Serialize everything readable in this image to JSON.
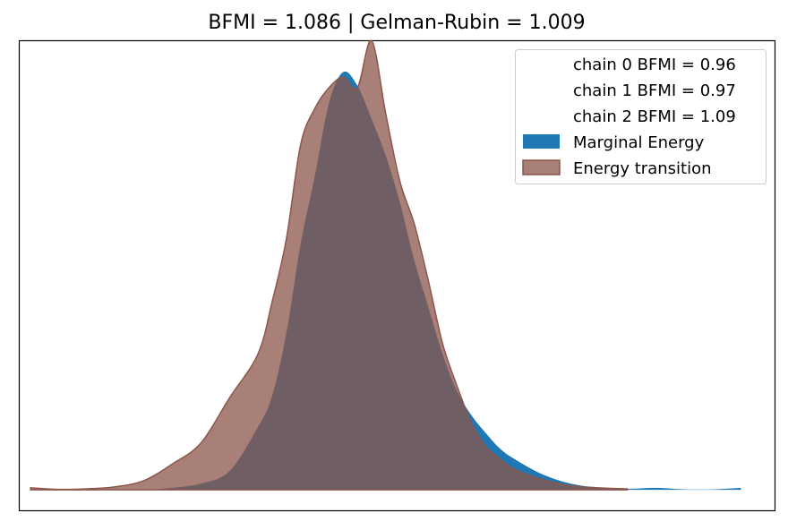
{
  "chart_data": {
    "type": "area",
    "title": "BFMI = 1.086 | Gelman-Rubin = 1.009",
    "xlabel": "",
    "ylabel": "",
    "axes_ticks": false,
    "grid": false,
    "legend_position": "top-right",
    "xlim": [
      -6.2,
      7.1
    ],
    "ylim": [
      -0.02,
      0.43
    ],
    "legend": {
      "chain_entries": [
        "chain  0 BFMI = 0.96",
        "chain  1 BFMI = 0.97",
        "chain  2 BFMI = 1.09"
      ]
    },
    "series": [
      {
        "name": "Marginal Energy",
        "color": "#1f77b4",
        "x": [
          -4.0,
          -3.5,
          -3.0,
          -2.5,
          -2.0,
          -1.75,
          -1.5,
          -1.25,
          -1.0,
          -0.75,
          -0.5,
          -0.25,
          0.0,
          0.25,
          0.5,
          0.75,
          1.0,
          1.25,
          1.5,
          1.75,
          2.0,
          2.25,
          2.5,
          3.0,
          3.5,
          4.0,
          4.5,
          5.0,
          5.5,
          6.0,
          6.5
        ],
        "y": [
          0.0,
          0.002,
          0.006,
          0.018,
          0.06,
          0.09,
          0.15,
          0.235,
          0.3,
          0.37,
          0.4,
          0.387,
          0.355,
          0.32,
          0.275,
          0.22,
          0.175,
          0.13,
          0.095,
          0.072,
          0.055,
          0.04,
          0.03,
          0.015,
          0.006,
          0.002,
          0.001,
          0.002,
          0.0005,
          0.0005,
          0.002
        ]
      },
      {
        "name": "Energy transition",
        "color": "#8c564b",
        "x": [
          -6.0,
          -5.5,
          -5.0,
          -4.5,
          -4.0,
          -3.5,
          -3.0,
          -2.5,
          -2.0,
          -1.75,
          -1.5,
          -1.25,
          -1.0,
          -0.75,
          -0.5,
          -0.25,
          0.0,
          0.25,
          0.5,
          0.75,
          1.0,
          1.25,
          1.5,
          1.75,
          2.0,
          2.25,
          2.5,
          3.0,
          3.5,
          4.0,
          4.5
        ],
        "y": [
          0.002,
          0.0005,
          0.001,
          0.003,
          0.009,
          0.025,
          0.045,
          0.088,
          0.13,
          0.18,
          0.24,
          0.33,
          0.365,
          0.385,
          0.395,
          0.385,
          0.43,
          0.36,
          0.295,
          0.255,
          0.2,
          0.14,
          0.1,
          0.065,
          0.042,
          0.03,
          0.02,
          0.01,
          0.004,
          0.002,
          0.001
        ]
      }
    ]
  }
}
